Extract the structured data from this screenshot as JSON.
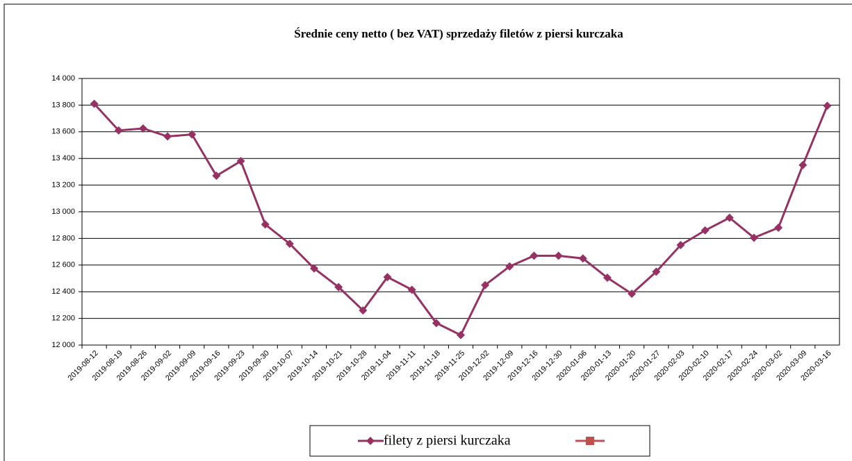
{
  "chart_data": {
    "type": "line",
    "title": "Średnie ceny netto ( bez VAT) sprzedaży filetów z piersi kurczaka",
    "categories": [
      "2019-08-12",
      "2019-08-19",
      "2019-08-26",
      "2019-09-02",
      "2019-09-09",
      "2019-09-16",
      "2019-09-23",
      "2019-09-30",
      "2019-10-07",
      "2019-10-14",
      "2019-10-21",
      "2019-10-28",
      "2019-11-04",
      "2019-11-11",
      "2019-11-18",
      "2019-11-25",
      "2019-12-02",
      "2019-12-09",
      "2019-12-16",
      "2019-12-30",
      "2020-01-06",
      "2020-01-13",
      "2020-01-20",
      "2020-01-27",
      "2020-02-03",
      "2020-02-10",
      "2020-02-17",
      "2020-02-24",
      "2020-03-02",
      "2020-03-09",
      "2020-03-16"
    ],
    "series": [
      {
        "name": "filety z piersi kurczaka",
        "color": "#953163",
        "values": [
          13810,
          13610,
          13625,
          13565,
          13580,
          13270,
          13380,
          12905,
          12760,
          12575,
          12435,
          12260,
          12510,
          12415,
          12165,
          12075,
          12450,
          12590,
          12670,
          12670,
          12650,
          12505,
          12385,
          12550,
          12750,
          12860,
          12955,
          12805,
          12880,
          13350,
          13795
        ]
      }
    ],
    "ylim": [
      12000,
      14000
    ],
    "yticks": [
      {
        "value": 12000,
        "label": "12 000"
      },
      {
        "value": 12200,
        "label": "12 200"
      },
      {
        "value": 12400,
        "label": "12 400"
      },
      {
        "value": 12600,
        "label": "12 600"
      },
      {
        "value": 12800,
        "label": "12 800"
      },
      {
        "value": 13000,
        "label": "13 000"
      },
      {
        "value": 13200,
        "label": "13 200"
      },
      {
        "value": 13400,
        "label": "13 400"
      },
      {
        "value": 13600,
        "label": "13 600"
      },
      {
        "value": 13800,
        "label": "13 800"
      },
      {
        "value": 14000,
        "label": "14 000"
      }
    ],
    "grid": true
  }
}
